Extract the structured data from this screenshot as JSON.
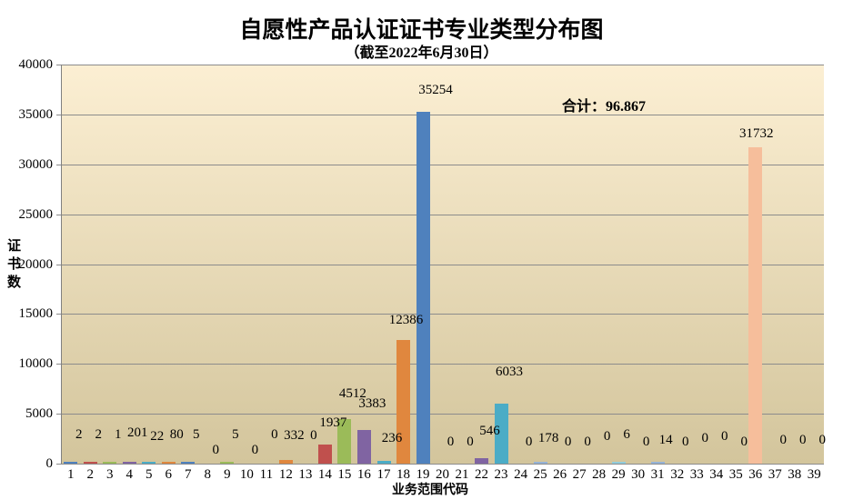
{
  "chart_data": {
    "type": "bar",
    "title": "自愿性产品认证证书专业类型分布图",
    "subtitle": "（截至2022年6月30日）",
    "total_label": "合计：96.867",
    "xlabel": "业务范围代码",
    "ylabel": "证书数",
    "categories": [
      1,
      2,
      3,
      4,
      5,
      6,
      7,
      8,
      9,
      10,
      11,
      12,
      13,
      14,
      15,
      16,
      17,
      18,
      19,
      20,
      21,
      22,
      23,
      24,
      25,
      26,
      27,
      28,
      29,
      30,
      31,
      32,
      33,
      34,
      35,
      36,
      37,
      38,
      39
    ],
    "values": [
      2,
      2,
      1,
      201,
      22,
      80,
      5,
      0,
      5,
      0,
      0,
      332,
      0,
      1937,
      4512,
      3383,
      236,
      12386,
      35254,
      0,
      0,
      546,
      6033,
      0,
      178,
      0,
      0,
      0,
      6,
      0,
      14,
      0,
      0,
      0,
      0,
      31732,
      0,
      0,
      0
    ],
    "ylim": [
      0,
      40000
    ],
    "y_step": 5000,
    "grid": true,
    "legend": "none",
    "palette_main": [
      "#4F81BD",
      "#C0504D",
      "#9BBB59",
      "#8064A2",
      "#4BACC6",
      "#E0873E"
    ],
    "palette_light": [
      "#95B3D7",
      "#D99694",
      "#C3D69B",
      "#B3A2C7",
      "#92CDDC",
      "#F6BE9B"
    ],
    "plot_bg_top": "#FCEFD3",
    "plot_bg_bottom": "#D3C59C",
    "grid_color": "#8c8c8c",
    "axis_color": "#808080",
    "text_color": "#000000"
  }
}
